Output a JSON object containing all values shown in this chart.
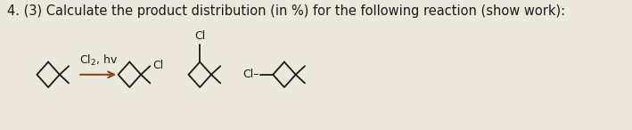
{
  "title_text": "4. (3) Calculate the product distribution (in %) for the following reaction (show work):",
  "title_fontsize": 10.5,
  "background_color": "#ece8de",
  "text_color": "#1a1a1a",
  "fig_width": 7.09,
  "fig_height": 1.46,
  "dpi": 100,
  "reagent_text": "Cl$_2$, hv",
  "cl_text": "Cl",
  "cl_minus_text": "Cl–",
  "arrow_color": "#8B4513",
  "mol_r": 0.145,
  "lw": 1.3
}
